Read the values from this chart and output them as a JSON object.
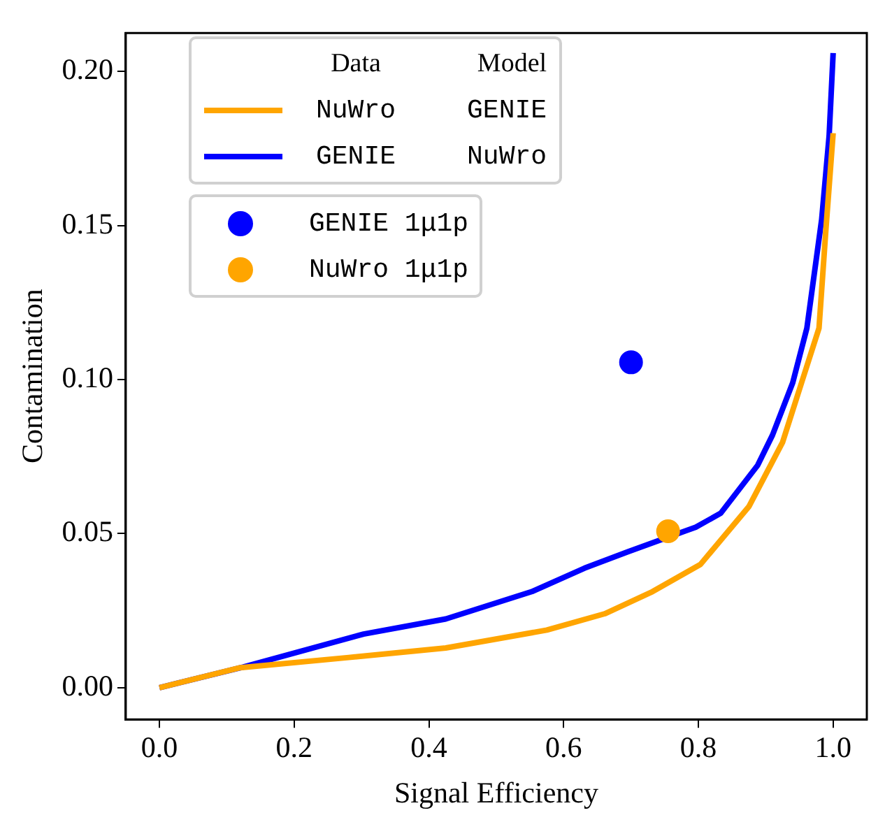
{
  "chart_data": {
    "type": "line",
    "xlabel": "Signal Efficiency",
    "ylabel": "Contamination",
    "xlim": [
      -0.05,
      1.05
    ],
    "xticks": [
      {
        "value": 0,
        "label": "0.0"
      },
      {
        "value": 0.2,
        "label": "0.2"
      },
      {
        "value": 0.4,
        "label": "0.4"
      },
      {
        "value": 0.6,
        "label": "0.6"
      },
      {
        "value": 0.8,
        "label": "0.8"
      },
      {
        "value": 1,
        "label": "1.0"
      }
    ],
    "ylim": [
      -0.0103,
      0.2125
    ],
    "yticks": [
      {
        "value": 0,
        "label": "0.00"
      },
      {
        "value": 0.05,
        "label": "0.05"
      },
      {
        "value": 0.1,
        "label": "0.10"
      },
      {
        "value": 0.15,
        "label": "0.15"
      },
      {
        "value": 0.2,
        "label": "0.20"
      }
    ],
    "grid": false,
    "legend": "top left",
    "legend_title": "Data",
    "annotations": [
      "Model",
      "GENIE",
      "NuWro"
    ],
    "series": [
      {
        "name": "NuWro",
        "color": "#ffa500",
        "x": [
          0,
          0.12,
          0.281,
          0.425,
          0.575,
          0.661,
          0.732,
          0.803,
          0.875,
          0.925,
          0.953,
          0.979,
          0.989,
          1.0
        ],
        "values": [
          0,
          0.0065,
          0.0098,
          0.0129,
          0.0187,
          0.024,
          0.0312,
          0.04,
          0.0588,
          0.0797,
          0.0989,
          0.1167,
          0.148,
          0.18
        ]
      },
      {
        "name": "GENIE",
        "color": "#0000ff",
        "x": [
          0,
          0.124,
          0.303,
          0.425,
          0.553,
          0.631,
          0.695,
          0.796,
          0.833,
          0.888,
          0.91,
          0.94,
          0.961,
          0.983,
          0.994,
          1.0
        ],
        "values": [
          0,
          0.0067,
          0.0174,
          0.0223,
          0.0312,
          0.0388,
          0.0441,
          0.0521,
          0.0566,
          0.0722,
          0.082,
          0.099,
          0.1167,
          0.152,
          0.179,
          0.206
        ]
      },
      {
        "name": "GENIE 1μ1p",
        "type": "scatter",
        "marker": "circle",
        "color": "#0000ff",
        "x": [
          0.7
        ],
        "values": [
          0.1056
        ]
      },
      {
        "name": "NuWro 1μ1p",
        "type": "scatter",
        "marker": "circle",
        "color": "#ffa500",
        "x": [
          0.755
        ],
        "values": [
          0.0508
        ]
      }
    ]
  }
}
